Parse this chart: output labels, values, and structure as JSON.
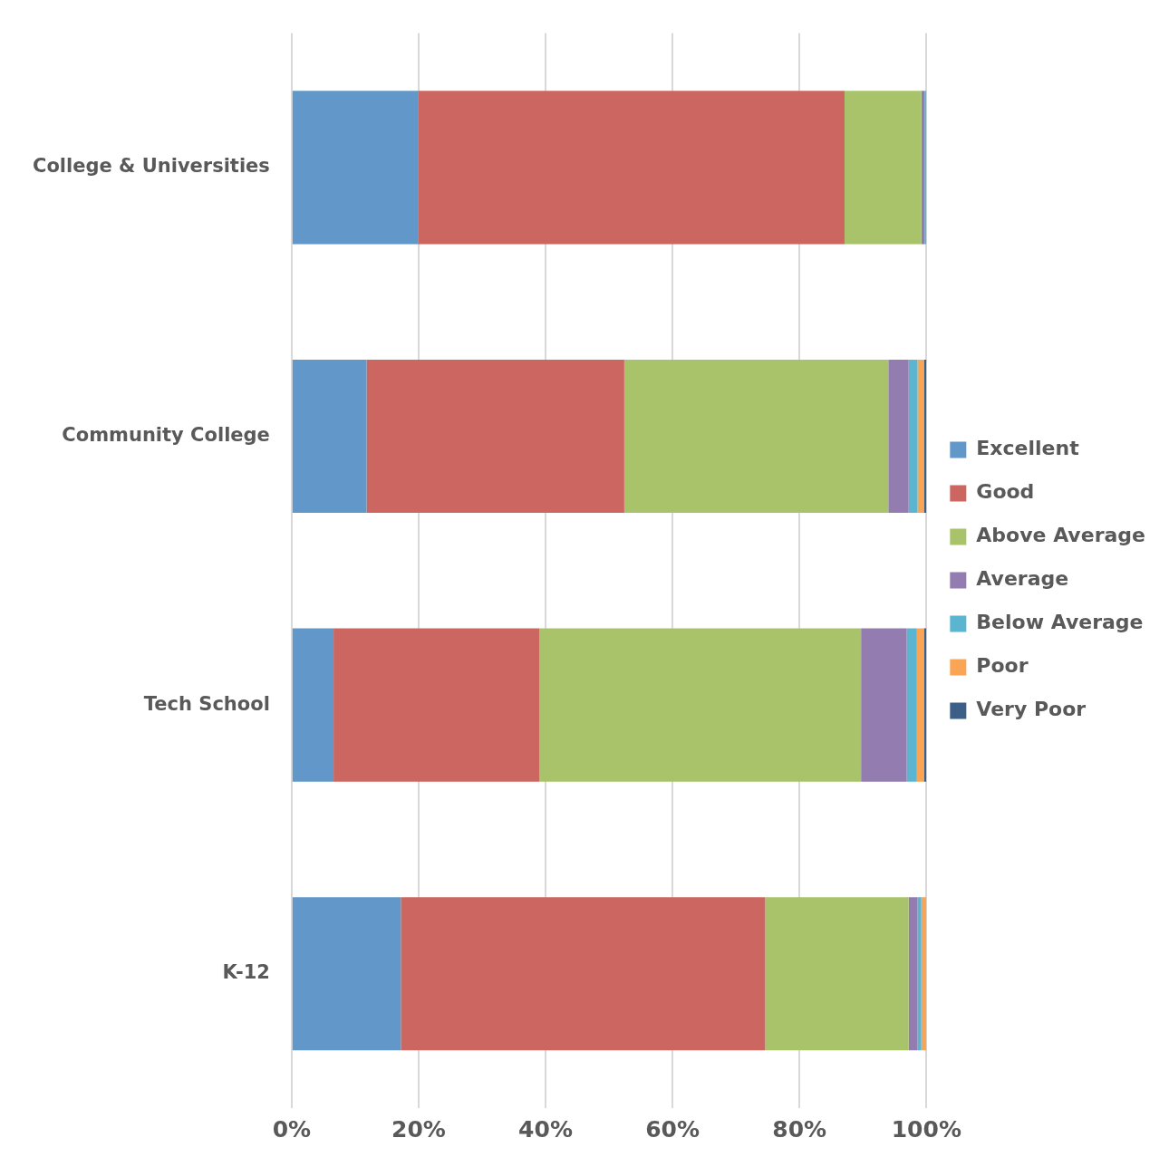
{
  "chart_data": {
    "type": "bar",
    "orientation": "horizontal",
    "stacked": true,
    "categories": [
      "College & Universities",
      "Community College",
      "Tech School",
      "K-12"
    ],
    "series": [
      {
        "name": "Excellent",
        "color": "#6197c9",
        "values": [
          19.9,
          11.8,
          6.6,
          17.2
        ]
      },
      {
        "name": "Good",
        "color": "#cc6660",
        "values": [
          67.2,
          40.6,
          32.4,
          57.4
        ]
      },
      {
        "name": "Above Average",
        "color": "#a9c36b",
        "values": [
          12.1,
          41.6,
          50.7,
          22.6
        ]
      },
      {
        "name": "Average",
        "color": "#927cb0",
        "values": [
          0.5,
          3.2,
          7.2,
          1.4
        ]
      },
      {
        "name": "Below Average",
        "color": "#5bb5d0",
        "values": [
          0.3,
          1.4,
          1.6,
          0.6
        ]
      },
      {
        "name": "Poor",
        "color": "#f9a555",
        "values": [
          0,
          1.0,
          1.1,
          0.8
        ]
      },
      {
        "name": "Very Poor",
        "color": "#3b5f86",
        "values": [
          0,
          0.4,
          0.4,
          0
        ]
      }
    ],
    "xlim": [
      0,
      100
    ],
    "xticks": [
      {
        "value": 0,
        "label": "0%"
      },
      {
        "value": 20,
        "label": "20%"
      },
      {
        "value": 40,
        "label": "40%"
      },
      {
        "value": 60,
        "label": "60%"
      },
      {
        "value": 80,
        "label": "80%"
      },
      {
        "value": 100,
        "label": "100%"
      }
    ],
    "grid": "x",
    "legend": "right"
  }
}
